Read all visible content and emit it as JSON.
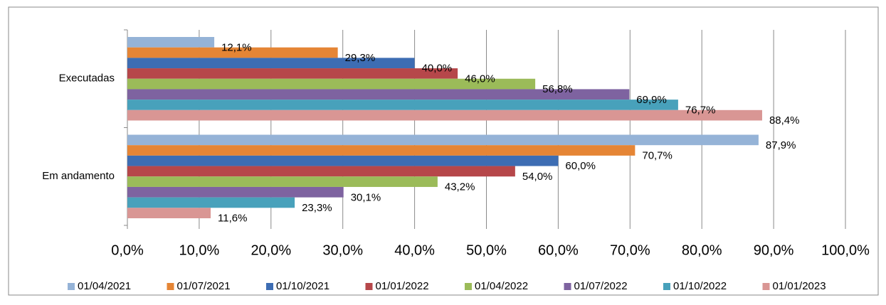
{
  "chart_data": {
    "type": "bar",
    "orientation": "horizontal",
    "categories": [
      "Executadas",
      "Em andamento"
    ],
    "series": [
      {
        "name": "01/04/2021",
        "color": "#95b3d7",
        "values": [
          12.1,
          87.9
        ],
        "value_labels": [
          "12,1%",
          "87,9%"
        ]
      },
      {
        "name": "01/07/2021",
        "color": "#e58535",
        "values": [
          29.3,
          70.7
        ],
        "value_labels": [
          "29,3%",
          "70,7%"
        ]
      },
      {
        "name": "01/10/2021",
        "color": "#3d6db3",
        "values": [
          40.0,
          60.0
        ],
        "value_labels": [
          "40,0%",
          "60,0%"
        ]
      },
      {
        "name": "01/01/2022",
        "color": "#b6474a",
        "values": [
          46.0,
          54.0
        ],
        "value_labels": [
          "46,0%",
          "54,0%"
        ]
      },
      {
        "name": "01/04/2022",
        "color": "#9bbb59",
        "values": [
          56.8,
          43.2
        ],
        "value_labels": [
          "56,8%",
          "43,2%"
        ]
      },
      {
        "name": "01/07/2022",
        "color": "#7e63a0",
        "values": [
          69.9,
          30.1
        ],
        "value_labels": [
          "69,9%",
          "30,1%"
        ]
      },
      {
        "name": "01/10/2022",
        "color": "#48a1bb",
        "values": [
          76.7,
          23.3
        ],
        "value_labels": [
          "76,7%",
          "23,3%"
        ]
      },
      {
        "name": "01/01/2023",
        "color": "#d99694",
        "values": [
          88.4,
          11.6
        ],
        "value_labels": [
          "88,4%",
          "11,6%"
        ]
      }
    ],
    "xlim": [
      0,
      100
    ],
    "xticks": [
      {
        "value": 0,
        "label": "0,0%"
      },
      {
        "value": 10,
        "label": "10,0%"
      },
      {
        "value": 20,
        "label": "20,0%"
      },
      {
        "value": 30,
        "label": "30,0%"
      },
      {
        "value": 40,
        "label": "40,0%"
      },
      {
        "value": 50,
        "label": "50,0%"
      },
      {
        "value": 60,
        "label": "60,0%"
      },
      {
        "value": 70,
        "label": "70,0%"
      },
      {
        "value": 80,
        "label": "80,0%"
      },
      {
        "value": 90,
        "label": "90,0%"
      },
      {
        "value": 100,
        "label": "100,0%"
      }
    ],
    "grid": true,
    "legend": "bottom"
  }
}
